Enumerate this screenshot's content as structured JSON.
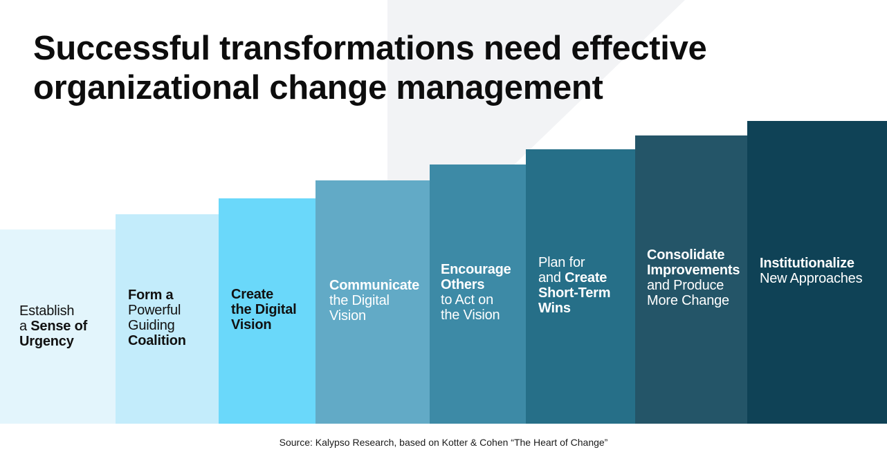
{
  "title": {
    "line1": "Successful transformations need effective",
    "line2": "organizational change management"
  },
  "steps": [
    {
      "level": 1,
      "color": "#e3f5fc",
      "edge": "#bfe8f8",
      "text_color": "#111111",
      "lines": [
        {
          "a": "Establish",
          "b": ""
        },
        {
          "a": "a ",
          "b": "Sense of"
        },
        {
          "a": "",
          "b": "Urgency"
        }
      ]
    },
    {
      "level": 2,
      "color": "#c3ecfb",
      "edge": "#9fdff6",
      "text_color": "#111111",
      "lines": [
        {
          "a": "",
          "b": "Form a"
        },
        {
          "a": "Powerful",
          "b": ""
        },
        {
          "a": "Guiding",
          "b": ""
        },
        {
          "a": "",
          "b": "Coalition"
        }
      ]
    },
    {
      "level": 3,
      "color": "#6ad8fa",
      "edge": "#2b98c7",
      "text_color": "#111111",
      "lines": [
        {
          "a": "",
          "b": "Create"
        },
        {
          "a": "",
          "b": "the Digital"
        },
        {
          "a": "",
          "b": "Vision"
        }
      ]
    },
    {
      "level": 4,
      "color": "#62aac6",
      "edge": "#1f6f8e",
      "text_color": "#ffffff",
      "lines": [
        {
          "a": "",
          "b": "Communicate"
        },
        {
          "a": "the Digital",
          "b": ""
        },
        {
          "a": "Vision",
          "b": ""
        }
      ]
    },
    {
      "level": 5,
      "color": "#3d8aa6",
      "edge": "#1a5e78",
      "text_color": "#ffffff",
      "lines": [
        {
          "a": "",
          "b": "Encourage"
        },
        {
          "a": "",
          "b": "Others"
        },
        {
          "a": "to Act on",
          "b": ""
        },
        {
          "a": "the Vision",
          "b": ""
        }
      ]
    },
    {
      "level": 6,
      "color": "#266f88",
      "edge": "#19546a",
      "text_color": "#ffffff",
      "lines": [
        {
          "a": "Plan for",
          "b": ""
        },
        {
          "a": "and ",
          "b": "Create"
        },
        {
          "a": "",
          "b": "Short-Term"
        },
        {
          "a": "",
          "b": "Wins"
        }
      ]
    },
    {
      "level": 7,
      "color": "#245568",
      "edge": "#143e4e",
      "text_color": "#ffffff",
      "lines": [
        {
          "a": "",
          "b": "Consolidate"
        },
        {
          "a": "",
          "b": "Improvements"
        },
        {
          "a": "and Produce",
          "b": ""
        },
        {
          "a": "More Change",
          "b": ""
        }
      ]
    },
    {
      "level": 8,
      "color": "#0f4256",
      "edge": "#0a3343",
      "text_color": "#ffffff",
      "lines": [
        {
          "a": "",
          "b": "Institutionalize"
        },
        {
          "a": "New Approaches",
          "b": ""
        }
      ]
    }
  ],
  "source": "Source: Kalypso Research, based on Kotter & Cohen “The Heart of Change”"
}
